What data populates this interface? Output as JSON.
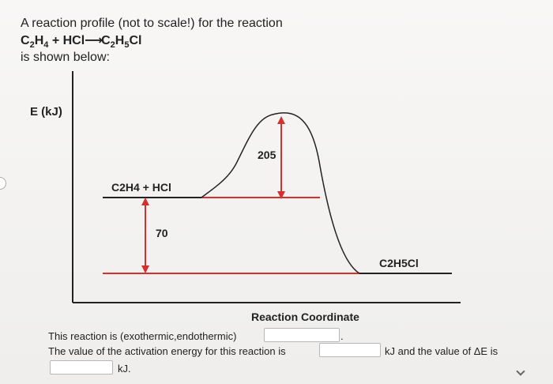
{
  "question": {
    "line1": "A reaction profile (not to scale!) for the reaction",
    "eq_lhs_c": "C",
    "eq_lhs_c_sub": "2",
    "eq_lhs_h": "H",
    "eq_lhs_h_sub": "4",
    "eq_plus": " + HCl",
    "eq_arrow": "⟶",
    "eq_rhs_c": "C",
    "eq_rhs_c_sub": "2",
    "eq_rhs_h": "H",
    "eq_rhs_h_sub": "5",
    "eq_rhs_cl": "Cl",
    "line3": "is shown below:"
  },
  "diagram": {
    "y_axis_label": "E (kJ)",
    "reactant_label": "C2H4 + HCl",
    "product_label": "C2H5Cl",
    "delta_e_value": "70",
    "activation_value": "205",
    "x_axis_label": "Reaction Coordinate",
    "colors": {
      "axis": "#222222",
      "level": "#d4302f",
      "arrow": "#d4302f",
      "curve": "#222222"
    }
  },
  "answers": {
    "line1_prefix": "This reaction is (exothermic,endothermic)",
    "line1_suffix": ".",
    "line2_prefix": "The value of the activation energy for this reaction is",
    "line2_suffix": "kJ and the value of ΔE is",
    "line3_suffix": "kJ."
  }
}
